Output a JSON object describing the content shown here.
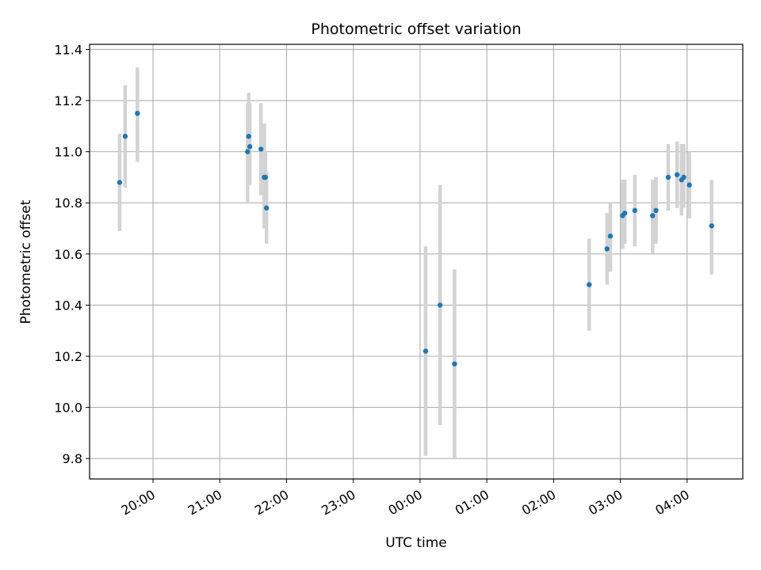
{
  "chart_data": {
    "type": "scatter",
    "title": "Photometric offset variation",
    "xlabel": "UTC time",
    "ylabel": "Photometric offset",
    "x_axis_type": "time",
    "x_range": [
      "19:03",
      "04:50"
    ],
    "xticks": [
      "20:00",
      "21:00",
      "22:00",
      "23:00",
      "00:00",
      "01:00",
      "02:00",
      "03:00",
      "04:00"
    ],
    "ylim": [
      9.72,
      11.42
    ],
    "yticks": [
      "9.8",
      "10.0",
      "10.2",
      "10.4",
      "10.6",
      "10.8",
      "11.0",
      "11.2",
      "11.4"
    ],
    "grid": true,
    "legend": "none",
    "point_color": "#1f77b4",
    "errorbar_color": "#d3d3d3",
    "points": [
      {
        "x": "19:30",
        "y": 10.88,
        "err_low": 10.69,
        "err_high": 11.07
      },
      {
        "x": "19:35",
        "y": 11.06,
        "err_low": 10.86,
        "err_high": 11.26
      },
      {
        "x": "19:46",
        "y": 11.15,
        "err_low": 10.96,
        "err_high": 11.33
      },
      {
        "x": "21:25",
        "y": 11.0,
        "err_low": 10.8,
        "err_high": 11.19
      },
      {
        "x": "21:26",
        "y": 11.06,
        "err_low": 10.87,
        "err_high": 11.23
      },
      {
        "x": "21:27",
        "y": 11.02,
        "err_low": 10.87,
        "err_high": 11.19
      },
      {
        "x": "21:37",
        "y": 11.01,
        "err_low": 10.83,
        "err_high": 11.19
      },
      {
        "x": "21:40",
        "y": 10.9,
        "err_low": 10.7,
        "err_high": 11.11
      },
      {
        "x": "21:41",
        "y": 10.9,
        "err_low": 10.78,
        "err_high": 11.0
      },
      {
        "x": "21:42",
        "y": 10.78,
        "err_low": 10.64,
        "err_high": 10.92
      },
      {
        "x": "00:05",
        "y": 10.22,
        "err_low": 9.81,
        "err_high": 10.63
      },
      {
        "x": "00:18",
        "y": 10.4,
        "err_low": 9.93,
        "err_high": 10.87
      },
      {
        "x": "00:31",
        "y": 10.17,
        "err_low": 9.8,
        "err_high": 10.54
      },
      {
        "x": "02:32",
        "y": 10.48,
        "err_low": 10.3,
        "err_high": 10.66
      },
      {
        "x": "02:48",
        "y": 10.62,
        "err_low": 10.48,
        "err_high": 10.76
      },
      {
        "x": "02:51",
        "y": 10.67,
        "err_low": 10.53,
        "err_high": 10.8
      },
      {
        "x": "03:02",
        "y": 10.75,
        "err_low": 10.62,
        "err_high": 10.89
      },
      {
        "x": "03:04",
        "y": 10.76,
        "err_low": 10.64,
        "err_high": 10.89
      },
      {
        "x": "03:13",
        "y": 10.77,
        "err_low": 10.63,
        "err_high": 10.91
      },
      {
        "x": "03:29",
        "y": 10.75,
        "err_low": 10.6,
        "err_high": 10.89
      },
      {
        "x": "03:32",
        "y": 10.77,
        "err_low": 10.64,
        "err_high": 10.9
      },
      {
        "x": "03:43",
        "y": 10.9,
        "err_low": 10.77,
        "err_high": 11.03
      },
      {
        "x": "03:51",
        "y": 10.91,
        "err_low": 10.78,
        "err_high": 11.04
      },
      {
        "x": "03:55",
        "y": 10.89,
        "err_low": 10.75,
        "err_high": 11.03
      },
      {
        "x": "03:57",
        "y": 10.9,
        "err_low": 10.78,
        "err_high": 11.03
      },
      {
        "x": "04:02",
        "y": 10.87,
        "err_low": 10.74,
        "err_high": 11.0
      },
      {
        "x": "04:22",
        "y": 10.71,
        "err_low": 10.52,
        "err_high": 10.89
      }
    ]
  }
}
